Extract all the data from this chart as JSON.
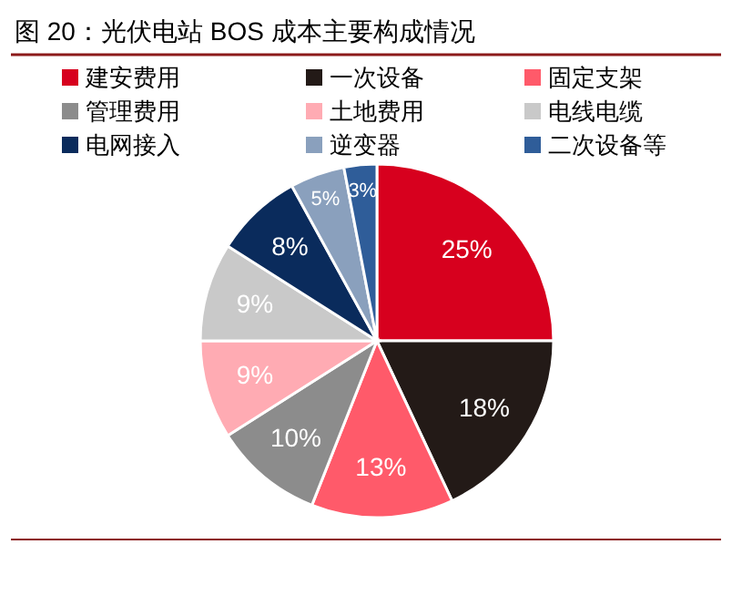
{
  "chart_data": {
    "type": "pie",
    "title": "图 20：光伏电站 BOS 成本主要构成情况",
    "categories": [
      "建安费用",
      "一次设备",
      "固定支架",
      "管理费用",
      "土地费用",
      "电线电缆",
      "电网接入",
      "逆变器",
      "二次设备等"
    ],
    "values": [
      25,
      18,
      13,
      10,
      9,
      9,
      8,
      5,
      3
    ],
    "value_labels": [
      "25%",
      "18%",
      "13%",
      "10%",
      "9%",
      "9%",
      "8%",
      "5%",
      "3%"
    ],
    "colors": [
      "#d7001e",
      "#231a17",
      "#ff5a6a",
      "#8c8c8c",
      "#ffabb3",
      "#c9c9c9",
      "#0a2b5c",
      "#8aa0bd",
      "#2f5d99"
    ],
    "legend": "top"
  }
}
